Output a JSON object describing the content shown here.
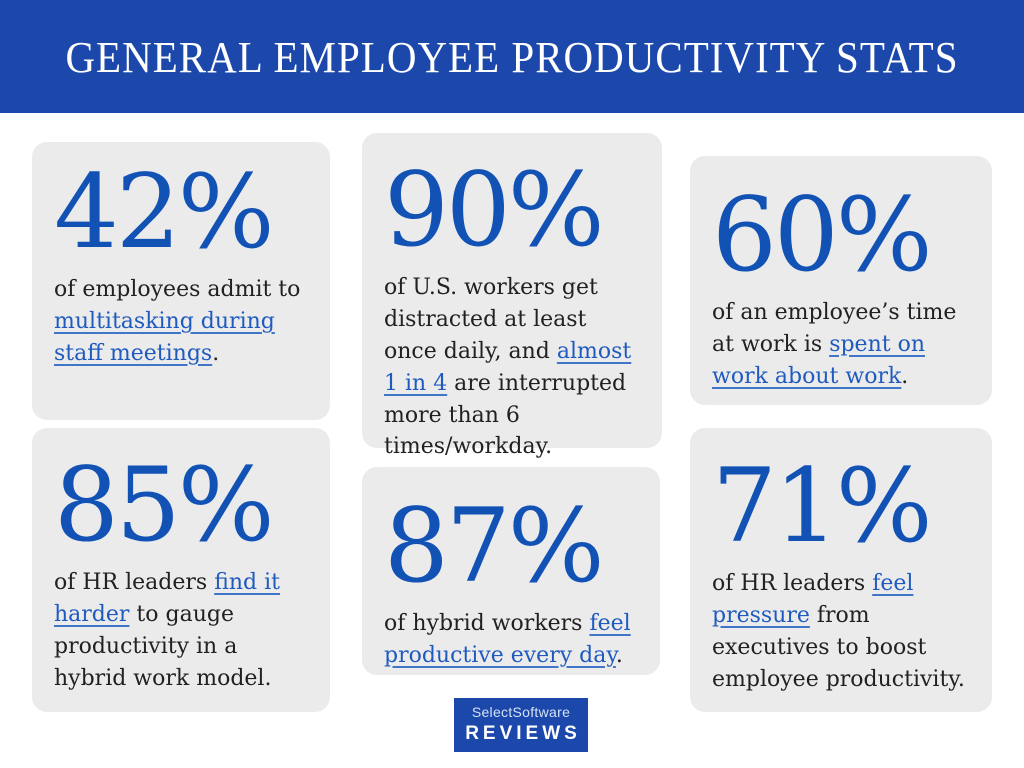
{
  "header": {
    "title": "GENERAL EMPLOYEE PRODUCTIVITY STATS",
    "bg": "#1c48ab",
    "text_color": "#ffffff"
  },
  "colors": {
    "accent_blue": "#1252b5",
    "link_blue": "#1f5abf",
    "card_bg": "#ebebeb",
    "body_text": "#212121"
  },
  "cards": [
    {
      "id": "multitasking-meetings",
      "value": "42%",
      "segments": [
        {
          "text": "of employees admit to ",
          "link": false
        },
        {
          "text": "multitasking during staff meetings",
          "link": true
        },
        {
          "text": ".",
          "link": false
        }
      ]
    },
    {
      "id": "workers-distracted",
      "value": "90%",
      "segments": [
        {
          "text": "of U.S. workers get distracted at least once daily, and ",
          "link": false
        },
        {
          "text": "almost 1 in 4",
          "link": true
        },
        {
          "text": " are interrupted more than 6 times/workday.",
          "link": false
        }
      ]
    },
    {
      "id": "work-about-work",
      "value": "60%",
      "segments": [
        {
          "text": "of an employee’s time at work is ",
          "link": false
        },
        {
          "text": "spent on work about work",
          "link": true
        },
        {
          "text": ".",
          "link": false
        }
      ]
    },
    {
      "id": "hr-gauge-productivity",
      "value": "85%",
      "segments": [
        {
          "text": "of HR leaders ",
          "link": false
        },
        {
          "text": "find it harder",
          "link": true
        },
        {
          "text": " to gauge productivity in a hybrid work model.",
          "link": false
        }
      ]
    },
    {
      "id": "hybrid-feel-productive",
      "value": "87%",
      "segments": [
        {
          "text": "of hybrid workers ",
          "link": false
        },
        {
          "text": "feel productive every day",
          "link": true
        },
        {
          "text": ".",
          "link": false
        }
      ]
    },
    {
      "id": "hr-pressure",
      "value": "71%",
      "segments": [
        {
          "text": "of HR leaders ",
          "link": false
        },
        {
          "text": "feel pressure",
          "link": true
        },
        {
          "text": " from executives to boost employee productivity.",
          "link": false
        }
      ]
    }
  ],
  "footer_logo": {
    "line1": "SelectSoftware",
    "line2": "REVIEWS",
    "bg": "#1c48ab"
  }
}
